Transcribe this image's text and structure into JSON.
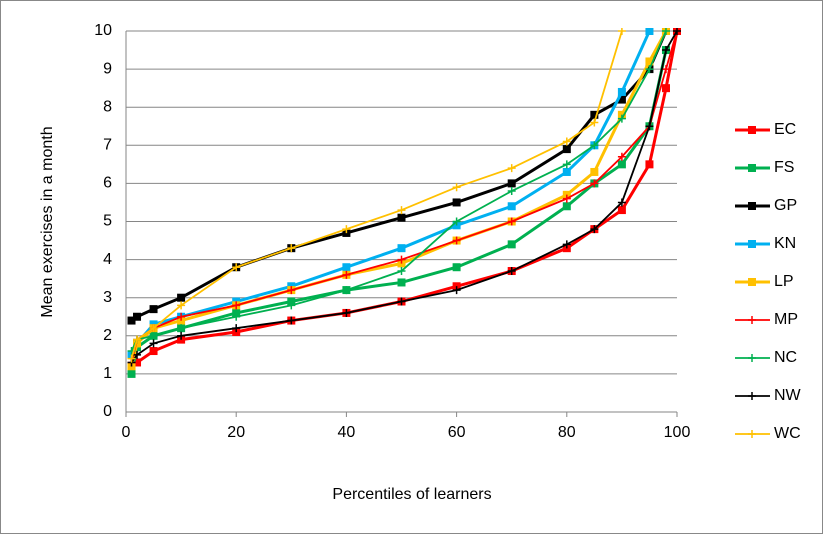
{
  "chart_data": {
    "type": "line",
    "x_label": "Percentiles of learners",
    "y_label": "Mean exercises in a month",
    "x": [
      1,
      2,
      5,
      10,
      20,
      30,
      40,
      50,
      60,
      70,
      80,
      85,
      90,
      95,
      98,
      100
    ],
    "series": [
      {
        "name": "EC",
        "color": "#ff0000",
        "marker": "square",
        "values": [
          1.2,
          1.3,
          1.6,
          1.9,
          2.1,
          2.4,
          2.6,
          2.9,
          3.3,
          3.7,
          4.3,
          4.8,
          5.3,
          6.5,
          8.5,
          10
        ]
      },
      {
        "name": "FS",
        "color": "#00b050",
        "marker": "square",
        "values": [
          1.0,
          1.7,
          2.0,
          2.2,
          2.6,
          2.9,
          3.2,
          3.4,
          3.8,
          4.4,
          5.4,
          6.0,
          6.5,
          7.5,
          9.5,
          null
        ]
      },
      {
        "name": "GP",
        "color": "#000000",
        "marker": "square",
        "values": [
          2.4,
          2.5,
          2.7,
          3.0,
          3.8,
          4.3,
          4.7,
          5.1,
          5.5,
          6.0,
          6.9,
          7.8,
          8.2,
          9.0,
          10,
          null
        ]
      },
      {
        "name": "KN",
        "color": "#00b0f0",
        "marker": "square",
        "values": [
          1.5,
          1.8,
          2.3,
          2.5,
          2.9,
          3.3,
          3.8,
          4.3,
          4.9,
          5.4,
          6.3,
          7.0,
          8.4,
          10,
          null,
          null
        ]
      },
      {
        "name": "LP",
        "color": "#ffc000",
        "marker": "square",
        "values": [
          1.2,
          1.8,
          2.2,
          2.4,
          2.8,
          3.2,
          3.6,
          3.9,
          4.5,
          5.0,
          5.7,
          6.3,
          7.8,
          9.2,
          10,
          null
        ]
      },
      {
        "name": "MP",
        "color": "#ff0000",
        "marker": "plus",
        "values": [
          1.3,
          1.9,
          2.2,
          2.5,
          2.8,
          3.2,
          3.6,
          4.0,
          4.5,
          5.0,
          5.6,
          6.0,
          6.7,
          7.5,
          9.0,
          10
        ]
      },
      {
        "name": "NC",
        "color": "#00b050",
        "marker": "plus",
        "values": [
          1.6,
          1.9,
          2.0,
          2.2,
          2.5,
          2.8,
          3.2,
          3.7,
          5.0,
          5.8,
          6.5,
          7.0,
          7.7,
          9.0,
          10,
          null
        ]
      },
      {
        "name": "NW",
        "color": "#000000",
        "marker": "plus",
        "values": [
          1.3,
          1.5,
          1.8,
          2.0,
          2.2,
          2.4,
          2.6,
          2.9,
          3.2,
          3.7,
          4.4,
          4.8,
          5.5,
          7.5,
          9.5,
          10
        ]
      },
      {
        "name": "WC",
        "color": "#ffc000",
        "marker": "plus",
        "values": [
          1.4,
          1.9,
          2.2,
          2.8,
          3.8,
          4.3,
          4.8,
          5.3,
          5.9,
          6.4,
          7.1,
          7.6,
          10,
          null,
          null,
          null
        ]
      }
    ],
    "xlim": [
      0,
      100
    ],
    "xticks": [
      0,
      20,
      40,
      60,
      80,
      100
    ],
    "ylim": [
      0,
      10
    ],
    "yticks": [
      0,
      1,
      2,
      3,
      4,
      5,
      6,
      7,
      8,
      9,
      10
    ],
    "grid": true,
    "legend": "right"
  }
}
